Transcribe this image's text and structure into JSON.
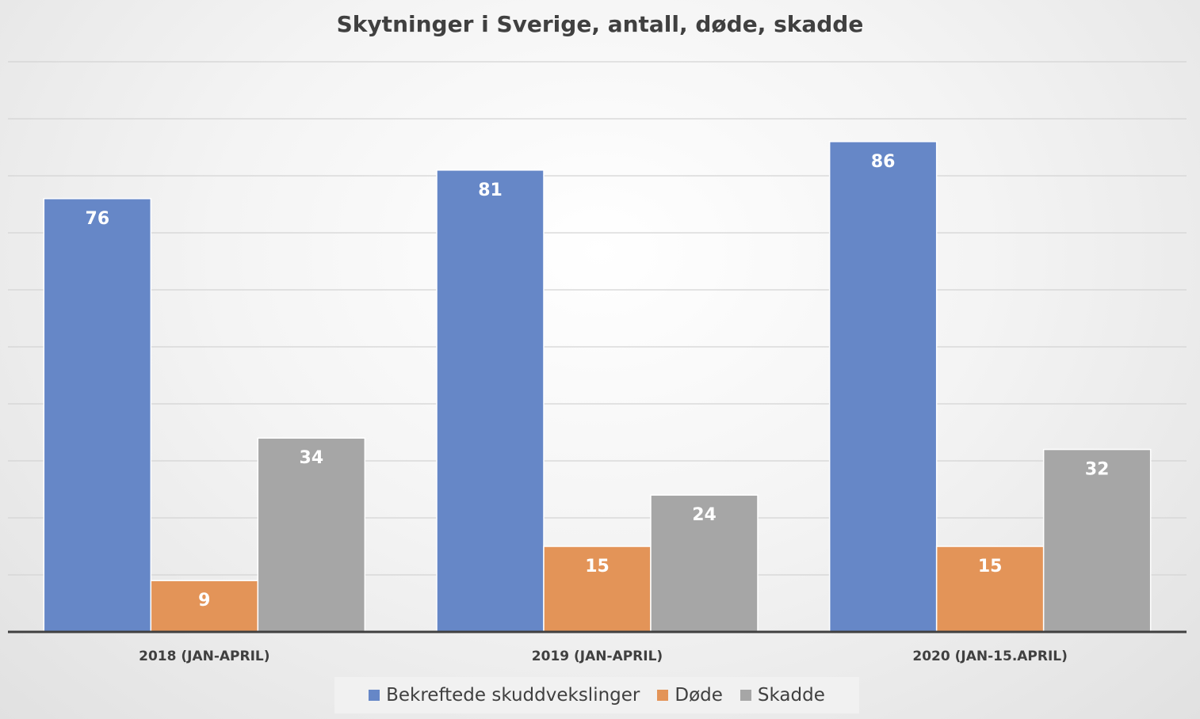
{
  "chart_data": {
    "type": "bar",
    "title": "Skytninger i Sverige, antall, døde, skadde",
    "categories": [
      "2018 (JAN-APRIL)",
      "2019 (JAN-APRIL)",
      "2020 (JAN-15.APRIL)"
    ],
    "series": [
      {
        "name": "Bekreftede skuddvekslinger",
        "values": [
          76,
          81,
          86
        ],
        "color": "#6687c7"
      },
      {
        "name": "Døde",
        "values": [
          9,
          15,
          15
        ],
        "color": "#e39458"
      },
      {
        "name": "Skadde",
        "values": [
          34,
          24,
          32
        ],
        "color": "#a6a6a6"
      }
    ],
    "ylim": [
      0,
      100
    ],
    "grid": true,
    "data_labels": true,
    "legend_position": "bottom"
  }
}
